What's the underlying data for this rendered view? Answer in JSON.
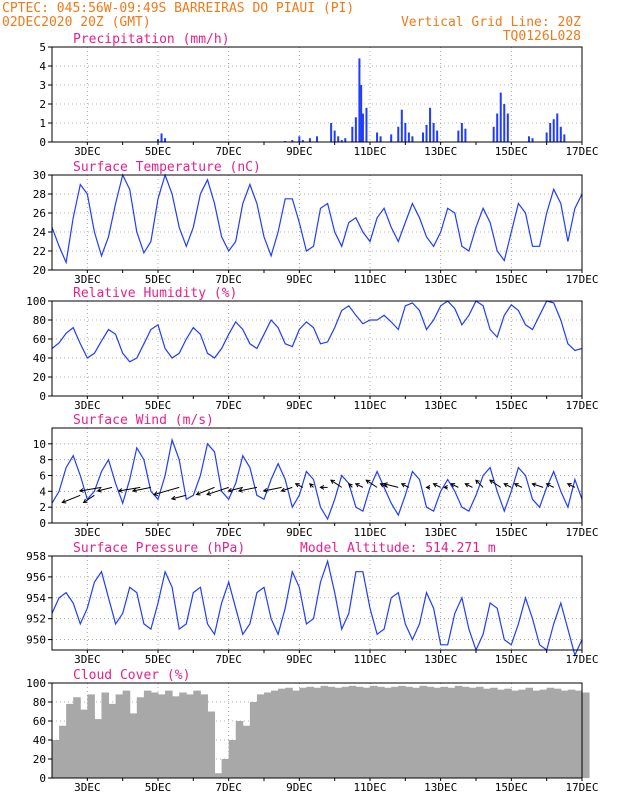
{
  "header": {
    "line1_left": "CPTEC:   045:56W-09:49S  BARREIRAS DO PIAUI (PI)",
    "line2_left": "02DEC2020 20Z (GMT)",
    "line2_right": "Vertical Grid Line: 20Z",
    "line3_right": "TQ0126L028"
  },
  "colors": {
    "header": "#f07a18",
    "title": "#e8208c",
    "series": "#1f3cff",
    "cloud": "#a8a8a8",
    "grid": "#9a9a9a"
  },
  "x_ticks": [
    "3DEC",
    "5DEC",
    "7DEC",
    "9DEC",
    "11DEC",
    "13DEC",
    "15DEC",
    "17DEC"
  ],
  "x_range_days": [
    2.0,
    17.0
  ],
  "chart_data": [
    {
      "id": "precip",
      "type": "bar",
      "title": "Precipitation (mm/h)",
      "ylim": [
        0,
        5
      ],
      "yticks": [
        0,
        1,
        2,
        3,
        4,
        5
      ],
      "x": [
        5.0,
        5.1,
        5.2,
        8.6,
        8.8,
        9.0,
        9.1,
        9.3,
        9.5,
        9.9,
        10.0,
        10.1,
        10.2,
        10.3,
        10.5,
        10.6,
        10.7,
        10.75,
        10.8,
        10.9,
        11.2,
        11.3,
        11.6,
        11.8,
        11.9,
        12.0,
        12.1,
        12.2,
        12.5,
        12.6,
        12.7,
        12.8,
        12.9,
        13.5,
        13.6,
        13.7,
        14.5,
        14.6,
        14.7,
        14.8,
        14.9,
        15.5,
        15.6,
        16.0,
        16.1,
        16.2,
        16.3,
        16.4,
        16.5
      ],
      "values": [
        0.15,
        0.45,
        0.2,
        0.05,
        0.1,
        0.3,
        0.1,
        0.2,
        0.3,
        1.0,
        0.6,
        0.3,
        0.1,
        0.2,
        0.8,
        1.3,
        4.4,
        3.0,
        1.5,
        1.8,
        0.5,
        0.3,
        0.4,
        0.8,
        1.7,
        1.0,
        0.5,
        0.3,
        0.5,
        0.9,
        1.8,
        1.0,
        0.6,
        0.6,
        1.0,
        0.7,
        0.8,
        1.5,
        2.6,
        2.0,
        1.5,
        0.3,
        0.2,
        0.5,
        1.0,
        1.2,
        1.5,
        0.8,
        0.4
      ]
    },
    {
      "id": "temp",
      "type": "line",
      "title": "Surface Temperature (nC)",
      "ylim": [
        20,
        30
      ],
      "yticks": [
        20,
        22,
        24,
        26,
        28,
        30
      ],
      "x": [
        2.0,
        2.2,
        2.4,
        2.6,
        2.8,
        3.0,
        3.2,
        3.4,
        3.6,
        3.8,
        4.0,
        4.2,
        4.4,
        4.6,
        4.8,
        5.0,
        5.2,
        5.4,
        5.6,
        5.8,
        6.0,
        6.2,
        6.4,
        6.6,
        6.8,
        7.0,
        7.2,
        7.4,
        7.6,
        7.8,
        8.0,
        8.2,
        8.4,
        8.6,
        8.8,
        9.0,
        9.2,
        9.4,
        9.6,
        9.8,
        10.0,
        10.2,
        10.4,
        10.6,
        10.8,
        11.0,
        11.2,
        11.4,
        11.6,
        11.8,
        12.0,
        12.2,
        12.4,
        12.6,
        12.8,
        13.0,
        13.2,
        13.4,
        13.6,
        13.8,
        14.0,
        14.2,
        14.4,
        14.6,
        14.8,
        15.0,
        15.2,
        15.4,
        15.6,
        15.8,
        16.0,
        16.2,
        16.4,
        16.6,
        16.8,
        17.0
      ],
      "values": [
        24.5,
        22.5,
        20.8,
        25.5,
        29.0,
        28.0,
        24.0,
        21.5,
        23.5,
        27.0,
        30.0,
        28.5,
        24.0,
        21.8,
        23.0,
        27.5,
        30.0,
        28.0,
        24.5,
        22.5,
        24.5,
        28.0,
        29.5,
        27.0,
        23.5,
        22.0,
        23.0,
        27.0,
        29.0,
        27.0,
        23.5,
        21.5,
        24.0,
        27.5,
        27.5,
        25.0,
        22.0,
        22.5,
        26.5,
        27.0,
        24.0,
        22.5,
        25.0,
        25.5,
        24.0,
        23.0,
        25.5,
        26.5,
        24.5,
        23.0,
        25.0,
        27.0,
        25.5,
        23.5,
        22.5,
        24.0,
        26.5,
        26.0,
        22.5,
        22.0,
        24.5,
        26.5,
        25.0,
        22.0,
        21.0,
        24.0,
        27.0,
        26.0,
        22.5,
        22.5,
        26.0,
        28.5,
        27.0,
        23.0,
        26.5,
        28.0
      ]
    },
    {
      "id": "rh",
      "type": "line",
      "title": "Relative Humidity (%)",
      "ylim": [
        0,
        100
      ],
      "yticks": [
        0,
        20,
        40,
        60,
        80,
        100
      ],
      "x": [
        2.0,
        2.2,
        2.4,
        2.6,
        2.8,
        3.0,
        3.2,
        3.4,
        3.6,
        3.8,
        4.0,
        4.2,
        4.4,
        4.6,
        4.8,
        5.0,
        5.2,
        5.4,
        5.6,
        5.8,
        6.0,
        6.2,
        6.4,
        6.6,
        6.8,
        7.0,
        7.2,
        7.4,
        7.6,
        7.8,
        8.0,
        8.2,
        8.4,
        8.6,
        8.8,
        9.0,
        9.2,
        9.4,
        9.6,
        9.8,
        10.0,
        10.2,
        10.4,
        10.6,
        10.8,
        11.0,
        11.2,
        11.4,
        11.6,
        11.8,
        12.0,
        12.2,
        12.4,
        12.6,
        12.8,
        13.0,
        13.2,
        13.4,
        13.6,
        13.8,
        14.0,
        14.2,
        14.4,
        14.6,
        14.8,
        15.0,
        15.2,
        15.4,
        15.6,
        15.8,
        16.0,
        16.2,
        16.4,
        16.6,
        16.8,
        17.0
      ],
      "values": [
        50,
        56,
        66,
        72,
        55,
        40,
        45,
        58,
        70,
        65,
        45,
        36,
        40,
        55,
        70,
        75,
        50,
        40,
        45,
        60,
        72,
        65,
        45,
        40,
        50,
        65,
        78,
        70,
        55,
        50,
        65,
        80,
        72,
        55,
        52,
        70,
        78,
        72,
        55,
        57,
        72,
        90,
        95,
        85,
        76,
        80,
        80,
        85,
        78,
        70,
        95,
        98,
        90,
        70,
        80,
        95,
        100,
        92,
        75,
        85,
        100,
        95,
        70,
        62,
        85,
        96,
        90,
        75,
        70,
        85,
        100,
        98,
        80,
        55,
        48,
        50
      ]
    },
    {
      "id": "wind",
      "type": "line",
      "title": "Surface Wind (m/s)",
      "ylim": [
        0,
        12
      ],
      "yticks": [
        0,
        2,
        4,
        6,
        8,
        10
      ],
      "x": [
        2.0,
        2.2,
        2.4,
        2.6,
        2.8,
        3.0,
        3.2,
        3.4,
        3.6,
        3.8,
        4.0,
        4.2,
        4.4,
        4.6,
        4.8,
        5.0,
        5.2,
        5.4,
        5.6,
        5.8,
        6.0,
        6.2,
        6.4,
        6.6,
        6.8,
        7.0,
        7.2,
        7.4,
        7.6,
        7.8,
        8.0,
        8.2,
        8.4,
        8.6,
        8.8,
        9.0,
        9.2,
        9.4,
        9.6,
        9.8,
        10.0,
        10.2,
        10.4,
        10.6,
        10.8,
        11.0,
        11.2,
        11.4,
        11.6,
        11.8,
        12.0,
        12.2,
        12.4,
        12.6,
        12.8,
        13.0,
        13.2,
        13.4,
        13.6,
        13.8,
        14.0,
        14.2,
        14.4,
        14.6,
        14.8,
        15.0,
        15.2,
        15.4,
        15.6,
        15.8,
        16.0,
        16.2,
        16.4,
        16.6,
        16.8,
        17.0
      ],
      "values": [
        2.5,
        4.0,
        7.0,
        8.5,
        6.0,
        3.0,
        4.0,
        6.5,
        8.0,
        5.0,
        2.5,
        5.5,
        9.5,
        8.0,
        4.0,
        3.0,
        6.0,
        10.5,
        8.0,
        3.0,
        3.5,
        6.0,
        10.0,
        9.0,
        4.0,
        3.0,
        5.0,
        8.5,
        7.0,
        3.5,
        3.0,
        5.5,
        7.5,
        5.5,
        2.0,
        3.5,
        6.5,
        5.5,
        2.0,
        0.5,
        3.0,
        6.0,
        5.0,
        2.0,
        1.5,
        4.5,
        6.5,
        4.5,
        2.5,
        1.0,
        3.5,
        6.5,
        5.5,
        2.0,
        1.5,
        4.0,
        5.5,
        4.0,
        2.0,
        1.5,
        3.5,
        6.0,
        7.0,
        4.0,
        1.5,
        4.0,
        7.0,
        6.0,
        3.0,
        2.0,
        4.5,
        6.5,
        4.0,
        2.0,
        5.5,
        3.0
      ],
      "barbs": {
        "x": [
          2.8,
          3.2,
          3.4,
          3.7,
          4.5,
          4.8,
          5.6,
          5.8,
          6.6,
          7.0,
          7.4,
          7.8,
          8.5,
          8.8,
          9.1,
          9.4,
          9.8,
          10.2,
          10.5,
          10.8,
          11.2,
          11.5,
          11.8,
          12.1,
          12.7,
          13.0,
          13.2,
          13.5,
          13.9,
          14.2,
          14.7,
          15.0,
          15.3,
          15.9,
          16.2,
          16.8
        ],
        "y": [
          3.5,
          3.5,
          4.5,
          4.5,
          4.5,
          4.5,
          4.5,
          3.5,
          4.5,
          4.5,
          4.5,
          4.5,
          4.5,
          4.5,
          4.5,
          4.5,
          4.5,
          4.5,
          4.5,
          4.5,
          4.5,
          4.5,
          4.5,
          4.5,
          4.5,
          4.5,
          4.5,
          4.5,
          4.5,
          4.5,
          4.5,
          4.5,
          4.5,
          4.5,
          4.5,
          4.5
        ],
        "u": [
          -5,
          -3,
          -6,
          -4,
          -6,
          -5,
          -7,
          -4,
          -5,
          -6,
          -4,
          -5,
          -5,
          -3,
          -2,
          -1,
          -2,
          -3,
          -1,
          -2,
          -3,
          -2,
          -4,
          -2,
          -1,
          -2,
          -1,
          -2,
          -2,
          -2,
          -3,
          -2,
          -2,
          -3,
          -2,
          -2
        ],
        "v": [
          -2,
          -2,
          -1,
          -1,
          -1,
          -1,
          -2,
          -1,
          -2,
          -2,
          -1,
          -1,
          -1,
          -1,
          1,
          1,
          0,
          2,
          1,
          1,
          2,
          1,
          1,
          1,
          0,
          1,
          0,
          1,
          1,
          2,
          2,
          1,
          1,
          1,
          1,
          1
        ]
      }
    },
    {
      "id": "pres",
      "type": "line",
      "title": "Surface Pressure (hPa)",
      "extra_label": "Model Altitude: 514.271 m",
      "ylim": [
        949,
        958
      ],
      "yticks": [
        950,
        952,
        954,
        956,
        958
      ],
      "x": [
        2.0,
        2.2,
        2.4,
        2.6,
        2.8,
        3.0,
        3.2,
        3.4,
        3.6,
        3.8,
        4.0,
        4.2,
        4.4,
        4.6,
        4.8,
        5.0,
        5.2,
        5.4,
        5.6,
        5.8,
        6.0,
        6.2,
        6.4,
        6.6,
        6.8,
        7.0,
        7.2,
        7.4,
        7.6,
        7.8,
        8.0,
        8.2,
        8.4,
        8.6,
        8.8,
        9.0,
        9.2,
        9.4,
        9.6,
        9.8,
        10.0,
        10.2,
        10.4,
        10.6,
        10.8,
        11.0,
        11.2,
        11.4,
        11.6,
        11.8,
        12.0,
        12.2,
        12.4,
        12.6,
        12.8,
        13.0,
        13.2,
        13.4,
        13.6,
        13.8,
        14.0,
        14.2,
        14.4,
        14.6,
        14.8,
        15.0,
        15.2,
        15.4,
        15.6,
        15.8,
        16.0,
        16.2,
        16.4,
        16.6,
        16.8,
        17.0
      ],
      "values": [
        952.5,
        954.0,
        954.5,
        953.5,
        951.5,
        953.0,
        955.5,
        956.5,
        954.0,
        951.5,
        952.5,
        955.0,
        954.5,
        951.5,
        951.0,
        953.5,
        956.5,
        955.0,
        951.0,
        951.5,
        954.5,
        955.0,
        951.5,
        950.5,
        953.5,
        955.5,
        953.0,
        950.5,
        951.5,
        954.5,
        955.0,
        952.0,
        950.5,
        953.0,
        956.5,
        955.0,
        951.5,
        952.0,
        955.5,
        957.5,
        954.5,
        951.0,
        952.5,
        956.5,
        956.5,
        953.0,
        950.5,
        951.0,
        954.0,
        954.5,
        951.5,
        950.0,
        951.5,
        954.5,
        953.0,
        949.5,
        949.5,
        952.5,
        954.0,
        951.0,
        949.0,
        950.5,
        953.5,
        953.0,
        950.0,
        949.5,
        951.5,
        954.0,
        952.0,
        949.5,
        949.0,
        951.5,
        953.5,
        951.0,
        948.5,
        950.0
      ]
    },
    {
      "id": "cloud",
      "type": "bar",
      "title": "Cloud Cover (%)",
      "ylim": [
        0,
        100
      ],
      "yticks": [
        0,
        20,
        40,
        60,
        80,
        100
      ],
      "x": [
        2.0,
        2.2,
        2.4,
        2.6,
        2.8,
        3.0,
        3.2,
        3.4,
        3.6,
        3.8,
        4.0,
        4.2,
        4.4,
        4.6,
        4.8,
        5.0,
        5.2,
        5.4,
        5.6,
        5.8,
        6.0,
        6.2,
        6.4,
        6.6,
        6.8,
        7.0,
        7.2,
        7.4,
        7.6,
        7.8,
        8.0,
        8.2,
        8.4,
        8.6,
        8.8,
        9.0,
        9.2,
        9.4,
        9.6,
        9.8,
        10.0,
        10.2,
        10.4,
        10.6,
        10.8,
        11.0,
        11.2,
        11.4,
        11.6,
        11.8,
        12.0,
        12.2,
        12.4,
        12.6,
        12.8,
        13.0,
        13.2,
        13.4,
        13.6,
        13.8,
        14.0,
        14.2,
        14.4,
        14.6,
        14.8,
        15.0,
        15.2,
        15.4,
        15.6,
        15.8,
        16.0,
        16.2,
        16.4,
        16.6,
        16.8,
        17.0
      ],
      "values": [
        40,
        55,
        78,
        85,
        72,
        88,
        62,
        90,
        78,
        88,
        92,
        68,
        85,
        92,
        90,
        88,
        92,
        86,
        90,
        88,
        92,
        88,
        70,
        5,
        20,
        40,
        60,
        55,
        80,
        88,
        90,
        92,
        94,
        95,
        92,
        95,
        96,
        95,
        97,
        96,
        95,
        96,
        97,
        96,
        95,
        97,
        96,
        95,
        96,
        97,
        96,
        95,
        97,
        96,
        95,
        96,
        95,
        97,
        96,
        95,
        96,
        94,
        95,
        93,
        94,
        92,
        93,
        95,
        92,
        93,
        95,
        94,
        92,
        93,
        92,
        90
      ]
    }
  ]
}
